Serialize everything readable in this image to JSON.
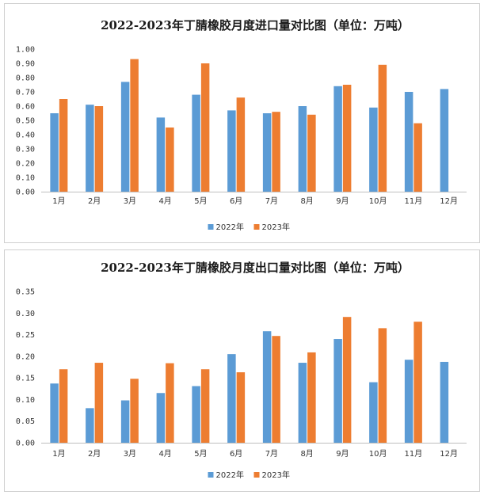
{
  "chart_data": [
    {
      "type": "bar",
      "title": "2022-2023年丁腈橡胶月度进口量对比图（单位：万吨）",
      "categories": [
        "1月",
        "2月",
        "3月",
        "4月",
        "5月",
        "6月",
        "7月",
        "8月",
        "9月",
        "10月",
        "11月",
        "12月"
      ],
      "series": [
        {
          "name": "2022年",
          "color": "#5B9BD5",
          "values": [
            0.55,
            0.61,
            0.77,
            0.52,
            0.68,
            0.57,
            0.55,
            0.6,
            0.74,
            0.59,
            0.7,
            0.72
          ]
        },
        {
          "name": "2023年",
          "color": "#ED7D31",
          "values": [
            0.65,
            0.6,
            0.93,
            0.45,
            0.9,
            0.66,
            0.56,
            0.54,
            0.75,
            0.89,
            0.48,
            null
          ]
        }
      ],
      "ylim": [
        0,
        1.0
      ],
      "yticks": [
        "0.00",
        "0.10",
        "0.20",
        "0.30",
        "0.40",
        "0.50",
        "0.60",
        "0.70",
        "0.80",
        "0.90",
        "1.00"
      ],
      "legend": "bottom",
      "grid": false
    },
    {
      "type": "bar",
      "title": "2022-2023年丁腈橡胶月度出口量对比图（单位：万吨）",
      "categories": [
        "1月",
        "2月",
        "3月",
        "4月",
        "5月",
        "6月",
        "7月",
        "8月",
        "9月",
        "10月",
        "11月",
        "12月"
      ],
      "series": [
        {
          "name": "2022年",
          "color": "#5B9BD5",
          "values": [
            0.137,
            0.08,
            0.098,
            0.115,
            0.131,
            0.205,
            0.258,
            0.185,
            0.24,
            0.14,
            0.192,
            0.187
          ]
        },
        {
          "name": "2023年",
          "color": "#ED7D31",
          "values": [
            0.17,
            0.185,
            0.148,
            0.184,
            0.17,
            0.163,
            0.247,
            0.209,
            0.291,
            0.265,
            0.28,
            null
          ]
        }
      ],
      "ylim": [
        0,
        0.35
      ],
      "yticks": [
        "0.00",
        "0.05",
        "0.10",
        "0.15",
        "0.20",
        "0.25",
        "0.30",
        "0.35"
      ],
      "legend": "bottom",
      "grid": false
    }
  ]
}
